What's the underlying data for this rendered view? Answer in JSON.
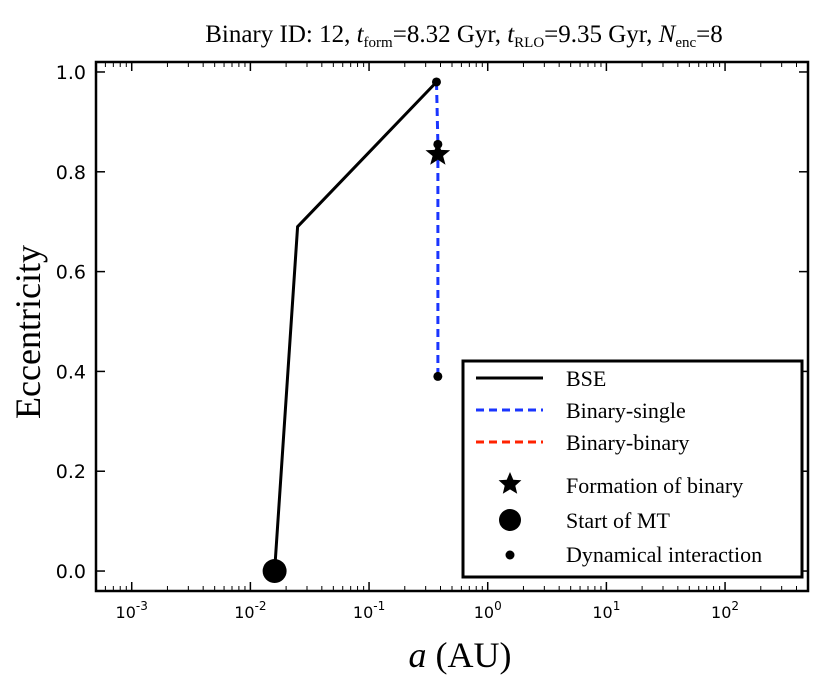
{
  "chart_data": {
    "type": "line",
    "title": {
      "prefix": "Binary ID: 12, ",
      "t_form_symbol": "t",
      "t_form_sub": "form",
      "t_form_value": "=8.32 Gyr, ",
      "t_rlo_symbol": "t",
      "t_rlo_sub": "RLO",
      "t_rlo_value": "=9.35 Gyr, ",
      "n_enc_symbol": "N",
      "n_enc_sub": "enc",
      "n_enc_value": "=8"
    },
    "xlabel": {
      "symbol": "a",
      "unit": " (AU)"
    },
    "ylabel": "Eccentricity",
    "xscale": "log",
    "xlim": [
      0.0005,
      500
    ],
    "ylim": [
      -0.04,
      1.02
    ],
    "xticks": [
      {
        "value": 0.001,
        "base": "10",
        "exp": "-3"
      },
      {
        "value": 0.01,
        "base": "10",
        "exp": "-2"
      },
      {
        "value": 0.1,
        "base": "10",
        "exp": "-1"
      },
      {
        "value": 1,
        "base": "10",
        "exp": "0"
      },
      {
        "value": 10,
        "base": "10",
        "exp": "1"
      },
      {
        "value": 100,
        "base": "10",
        "exp": "2"
      }
    ],
    "yticks": [
      {
        "value": 0.0,
        "label": "0.0"
      },
      {
        "value": 0.2,
        "label": "0.2"
      },
      {
        "value": 0.4,
        "label": "0.4"
      },
      {
        "value": 0.6,
        "label": "0.6"
      },
      {
        "value": 0.8,
        "label": "0.8"
      },
      {
        "value": 1.0,
        "label": "1.0"
      }
    ],
    "series": [
      {
        "name": "BSE",
        "style": "solid",
        "color": "#000000",
        "x": [
          0.016,
          0.025,
          0.37
        ],
        "y": [
          0.0,
          0.69,
          0.98
        ]
      },
      {
        "name": "Binary-single",
        "style": "dashed",
        "color": "#1a35ff",
        "x": [
          0.37,
          0.38,
          0.38,
          0.38
        ],
        "y": [
          0.98,
          0.855,
          0.835,
          0.39
        ]
      },
      {
        "name": "Binary-binary",
        "style": "dashed",
        "color": "#ff2200",
        "x": [
          0.38,
          0.38
        ],
        "y": [
          0.84,
          0.825
        ]
      }
    ],
    "markers": {
      "formation": {
        "label": "Formation of binary",
        "x": 0.38,
        "y": 0.835
      },
      "start_mt": {
        "label": "Start of MT",
        "x": 0.016,
        "y": 0.0
      },
      "interactions": {
        "label": "Dynamical interaction",
        "points": [
          {
            "x": 0.37,
            "y": 0.98
          },
          {
            "x": 0.38,
            "y": 0.855
          },
          {
            "x": 0.38,
            "y": 0.39
          }
        ]
      }
    },
    "legend": {
      "position": "lower-right",
      "entries": [
        "BSE",
        "Binary-single",
        "Binary-binary",
        "Formation of binary",
        "Start of MT",
        "Dynamical interaction"
      ]
    }
  }
}
